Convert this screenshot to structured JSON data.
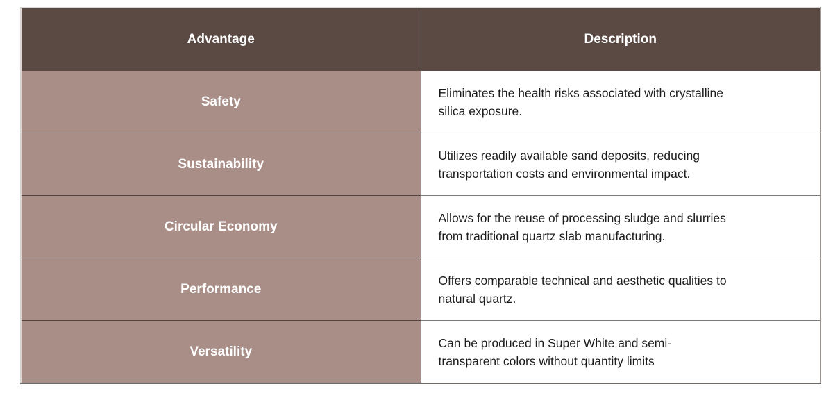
{
  "table": {
    "columns": [
      {
        "label": "Advantage"
      },
      {
        "label": "Description"
      }
    ],
    "rows": [
      {
        "advantage": "Safety",
        "description": "Eliminates the health risks associated with crystalline\nsilica exposure."
      },
      {
        "advantage": "Sustainability",
        "description": "Utilizes readily available sand deposits, reducing\ntransportation costs and environmental impact."
      },
      {
        "advantage": "Circular Economy",
        "description": "Allows for the reuse of processing sludge and slurries\nfrom traditional quartz slab manufacturing."
      },
      {
        "advantage": "Performance",
        "description": "Offers comparable technical and aesthetic qualities to\nnatural quartz."
      },
      {
        "advantage": "Versatility",
        "description": "Can be produced in Super White and semi-\ntransparent colors without quantity limits"
      }
    ],
    "colors": {
      "header_bg": "#5b4a44",
      "header_text": "#ffffff",
      "label_bg": "#a98e87",
      "label_text": "#ffffff",
      "description_text": "#1c1c1c",
      "grid_line": "#4c403d"
    }
  }
}
